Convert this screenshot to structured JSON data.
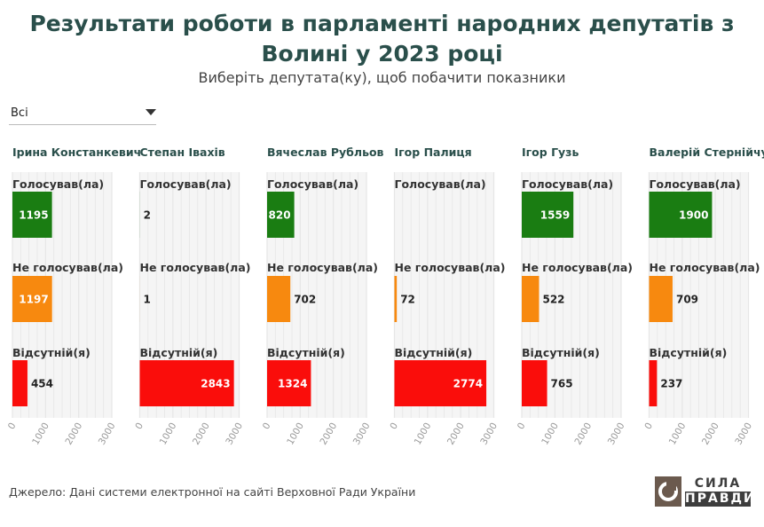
{
  "header": {
    "title": "Результати роботи в парламенті народних депутатів з Волині у 2023 році",
    "subtitle": "Виберіть депутата(ку), щоб побачити показники"
  },
  "filter": {
    "selected": "Всі"
  },
  "footer": {
    "source": "Джерело: Дані системи електронної на сайті Верховної Ради України"
  },
  "logo": {
    "line1": "СИЛА",
    "line2": "ПРАВДИ"
  },
  "colors": {
    "voted": "#1a7d12",
    "not_voted": "#f7890f",
    "absent": "#fa0d0b",
    "title": "#2a4f4b",
    "grid": "#e6e6e6",
    "panel_bg": "#f5f5f5"
  },
  "chart_data": {
    "type": "bar",
    "orientation": "horizontal",
    "categories": [
      "Голосував(ла)",
      "Не голосував(ла)",
      "Відсутній(я)"
    ],
    "xlim": [
      0,
      3000
    ],
    "xticks": [
      0,
      1000,
      2000,
      3000
    ],
    "grid": true,
    "panels": [
      {
        "name": "Ірина Констанкевич",
        "values": [
          1195,
          1197,
          454
        ]
      },
      {
        "name": "Степан Івахів",
        "values": [
          2,
          1,
          2843
        ]
      },
      {
        "name": "Вячеслав Рубльов",
        "values": [
          820,
          702,
          1324
        ]
      },
      {
        "name": "Ігор Палиця",
        "values": [
          0,
          72,
          2774
        ]
      },
      {
        "name": "Ігор Гузь",
        "values": [
          1559,
          522,
          765
        ]
      },
      {
        "name": "Валерій Стернійчук",
        "values": [
          1900,
          709,
          237
        ]
      }
    ]
  }
}
